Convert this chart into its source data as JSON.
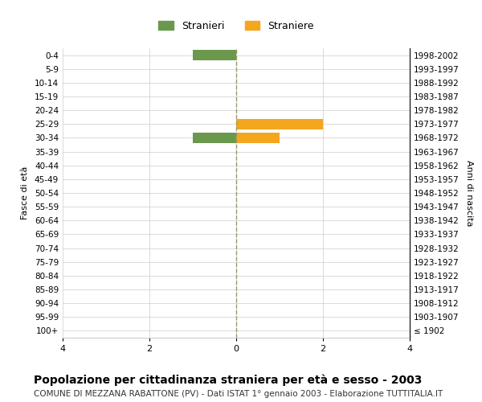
{
  "age_groups": [
    "100+",
    "95-99",
    "90-94",
    "85-89",
    "80-84",
    "75-79",
    "70-74",
    "65-69",
    "60-64",
    "55-59",
    "50-54",
    "45-49",
    "40-44",
    "35-39",
    "30-34",
    "25-29",
    "20-24",
    "15-19",
    "10-14",
    "5-9",
    "0-4"
  ],
  "birth_years": [
    "≤ 1902",
    "1903-1907",
    "1908-1912",
    "1913-1917",
    "1918-1922",
    "1923-1927",
    "1928-1932",
    "1933-1937",
    "1938-1942",
    "1943-1947",
    "1948-1952",
    "1953-1957",
    "1958-1962",
    "1963-1967",
    "1968-1972",
    "1973-1977",
    "1978-1982",
    "1983-1987",
    "1988-1992",
    "1993-1997",
    "1998-2002"
  ],
  "males": [
    0,
    0,
    0,
    0,
    0,
    0,
    0,
    0,
    0,
    0,
    0,
    0,
    0,
    0,
    1,
    0,
    0,
    0,
    0,
    0,
    1
  ],
  "females": [
    0,
    0,
    0,
    0,
    0,
    0,
    0,
    0,
    0,
    0,
    0,
    0,
    0,
    0,
    1,
    2,
    0,
    0,
    0,
    0,
    0
  ],
  "male_color": "#6a994e",
  "female_color": "#f4a61d",
  "male_label": "Stranieri",
  "female_label": "Straniere",
  "xlim": 4,
  "ylabel_left": "Fasce di età",
  "ylabel_right": "Anni di nascita",
  "title": "Popolazione per cittadinanza straniera per età e sesso - 2003",
  "subtitle": "COMUNE DI MEZZANA RABATTONE (PV) - Dati ISTAT 1° gennaio 2003 - Elaborazione TUTTITALIA.IT",
  "title_fontsize": 10,
  "subtitle_fontsize": 7.5,
  "background_color": "#ffffff",
  "grid_color": "#cccccc",
  "dashed_line_color": "#999966"
}
